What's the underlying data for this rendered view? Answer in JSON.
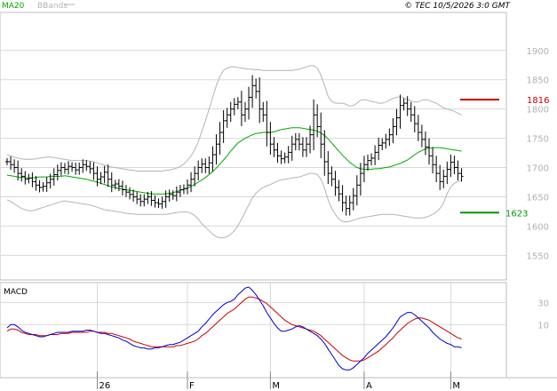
{
  "header": {
    "ma_label": "MA20",
    "bbands_label": "BBands",
    "copyright": "© TEC 10/5/2026 3:0 GMT"
  },
  "colors": {
    "candle": "#000000",
    "ma": "#00aa00",
    "bbands": "#b4b4b4",
    "resistance": "#cc0000",
    "support": "#009900",
    "macd": "#0000cc",
    "signal": "#cc0000",
    "grid": "#d8d8d8",
    "border": "#bcbcbc"
  },
  "chart_data": [
    {
      "type": "candlestick",
      "title": "",
      "y_ticks": [
        1550,
        1600,
        1650,
        1700,
        1750,
        1800,
        1850,
        1900
      ],
      "ylim": [
        1508,
        1965
      ],
      "x_ticks": [
        {
          "label": "26",
          "index": 25
        },
        {
          "label": "F",
          "index": 50
        },
        {
          "label": "M",
          "index": 73
        },
        {
          "label": "A",
          "index": 99
        },
        {
          "label": "M",
          "index": 123
        }
      ],
      "resistance": {
        "value": 1816,
        "label": "1816"
      },
      "support": {
        "value": 1623,
        "label": "1623"
      },
      "series": {
        "close": [
          1710,
          1705,
          1700,
          1690,
          1685,
          1680,
          1682,
          1676,
          1670,
          1666,
          1668,
          1674,
          1680,
          1688,
          1695,
          1700,
          1697,
          1702,
          1700,
          1696,
          1700,
          1705,
          1702,
          1698,
          1690,
          1680,
          1684,
          1692,
          1680,
          1670,
          1672,
          1668,
          1662,
          1658,
          1654,
          1650,
          1646,
          1642,
          1646,
          1650,
          1644,
          1640,
          1638,
          1642,
          1650,
          1654,
          1652,
          1658,
          1662,
          1664,
          1670,
          1680,
          1690,
          1700,
          1706,
          1700,
          1708,
          1722,
          1740,
          1760,
          1780,
          1790,
          1800,
          1808,
          1812,
          1790,
          1800,
          1820,
          1840,
          1830,
          1800,
          1790,
          1760,
          1740,
          1730,
          1720,
          1715,
          1718,
          1726,
          1740,
          1748,
          1740,
          1730,
          1740,
          1756,
          1790,
          1770,
          1740,
          1710,
          1690,
          1680,
          1666,
          1655,
          1640,
          1630,
          1640,
          1652,
          1670,
          1690,
          1705,
          1712,
          1716,
          1726,
          1738,
          1742,
          1748,
          1756,
          1770,
          1785,
          1806,
          1810,
          1800,
          1790,
          1775,
          1760,
          1748,
          1735,
          1720,
          1705,
          1690,
          1676,
          1685,
          1697,
          1709,
          1700,
          1690,
          1685
        ],
        "ma20": [
          1687,
          1686,
          1685,
          1684,
          1683,
          1683,
          1682,
          1682,
          1683,
          1684,
          1684,
          1684,
          1685,
          1685,
          1685,
          1685,
          1686,
          1685,
          1684,
          1683,
          1682,
          1681,
          1680,
          1678,
          1677,
          1675,
          1673,
          1671,
          1669,
          1667,
          1666,
          1664,
          1663,
          1662,
          1661,
          1660,
          1659,
          1658,
          1657,
          1656,
          1655,
          1655,
          1655,
          1655,
          1655,
          1656,
          1657,
          1659,
          1661,
          1663,
          1665,
          1668,
          1671,
          1675,
          1679,
          1683,
          1688,
          1693,
          1699,
          1706,
          1713,
          1720,
          1728,
          1735,
          1742,
          1746,
          1750,
          1753,
          1756,
          1758,
          1759,
          1760,
          1760,
          1760,
          1761,
          1763,
          1765,
          1766,
          1767,
          1768,
          1768,
          1768,
          1767,
          1766,
          1765,
          1764,
          1762,
          1759,
          1755,
          1749,
          1742,
          1735,
          1728,
          1721,
          1715,
          1709,
          1704,
          1700,
          1698,
          1697,
          1697,
          1697,
          1698,
          1698,
          1699,
          1700,
          1701,
          1703,
          1705,
          1707,
          1710,
          1713,
          1717,
          1722,
          1726,
          1729,
          1732,
          1733,
          1734,
          1734,
          1734,
          1733,
          1732,
          1731,
          1730,
          1729,
          1728
        ],
        "bb_upper": [
          1722,
          1720,
          1718,
          1716,
          1715,
          1714,
          1714,
          1714,
          1715,
          1716,
          1717,
          1718,
          1718,
          1717,
          1716,
          1715,
          1714,
          1713,
          1712,
          1712,
          1712,
          1712,
          1712,
          1711,
          1710,
          1708,
          1706,
          1704,
          1702,
          1701,
          1700,
          1699,
          1698,
          1697,
          1696,
          1695,
          1694,
          1694,
          1694,
          1694,
          1694,
          1694,
          1694,
          1694,
          1695,
          1696,
          1697,
          1699,
          1702,
          1706,
          1712,
          1720,
          1730,
          1744,
          1762,
          1780,
          1800,
          1820,
          1840,
          1856,
          1866,
          1870,
          1872,
          1872,
          1871,
          1870,
          1869,
          1868,
          1868,
          1867,
          1867,
          1866,
          1866,
          1866,
          1866,
          1866,
          1866,
          1866,
          1866,
          1866,
          1867,
          1868,
          1870,
          1872,
          1874,
          1874,
          1870,
          1858,
          1840,
          1822,
          1813,
          1810,
          1810,
          1810,
          1808,
          1805,
          1806,
          1810,
          1815,
          1816,
          1815,
          1813,
          1812,
          1810,
          1810,
          1812,
          1815,
          1818,
          1820,
          1821,
          1819,
          1816,
          1814,
          1812,
          1812,
          1815,
          1816,
          1815,
          1812,
          1810,
          1806,
          1802,
          1800,
          1798,
          1796,
          1793,
          1790
        ],
        "bb_lower": [
          1645,
          1642,
          1638,
          1634,
          1630,
          1628,
          1626,
          1626,
          1628,
          1630,
          1632,
          1634,
          1636,
          1638,
          1640,
          1642,
          1643,
          1642,
          1641,
          1640,
          1639,
          1638,
          1637,
          1636,
          1634,
          1632,
          1630,
          1628,
          1627,
          1626,
          1625,
          1624,
          1623,
          1622,
          1621,
          1621,
          1620,
          1620,
          1620,
          1620,
          1620,
          1620,
          1620,
          1620,
          1620,
          1621,
          1622,
          1623,
          1624,
          1624,
          1624,
          1622,
          1618,
          1612,
          1604,
          1598,
          1592,
          1586,
          1582,
          1580,
          1580,
          1582,
          1586,
          1592,
          1600,
          1612,
          1624,
          1636,
          1648,
          1656,
          1662,
          1666,
          1669,
          1671,
          1674,
          1677,
          1679,
          1680,
          1681,
          1682,
          1683,
          1684,
          1686,
          1688,
          1690,
          1690,
          1688,
          1680,
          1665,
          1645,
          1630,
          1620,
          1612,
          1608,
          1607,
          1608,
          1610,
          1612,
          1614,
          1615,
          1616,
          1617,
          1618,
          1619,
          1620,
          1620,
          1620,
          1620,
          1619,
          1618,
          1617,
          1616,
          1615,
          1614,
          1614,
          1614,
          1615,
          1617,
          1620,
          1624,
          1630,
          1640,
          1655,
          1667,
          1673,
          1676,
          1678
        ]
      }
    },
    {
      "type": "line",
      "title": "MACD",
      "y_ticks": [
        10,
        30
      ],
      "ylim": [
        -38,
        48
      ],
      "series": [
        {
          "name": "",
          "values": [
            7,
            10,
            10,
            8,
            5,
            3,
            2,
            1,
            0,
            -1,
            -1,
            0,
            1,
            2,
            3,
            3,
            3,
            3,
            4,
            4,
            4,
            4,
            5,
            5,
            4,
            3,
            2,
            2,
            1,
            0,
            -1,
            -2,
            -4,
            -5,
            -7,
            -9,
            -10,
            -11,
            -11,
            -12,
            -12,
            -11,
            -11,
            -10,
            -9,
            -8,
            -8,
            -7,
            -6,
            -4,
            -2,
            0,
            2,
            4,
            8,
            11,
            15,
            19,
            22,
            25,
            28,
            30,
            31,
            33,
            37,
            40,
            43,
            44,
            41,
            37,
            32,
            27,
            21,
            16,
            11,
            7,
            4,
            4,
            5,
            6,
            8,
            9,
            8,
            6,
            4,
            2,
            0,
            -3,
            -7,
            -12,
            -17,
            -22,
            -27,
            -30,
            -31,
            -31,
            -29,
            -26,
            -23,
            -20,
            -16,
            -13,
            -10,
            -7,
            -4,
            -1,
            3,
            7,
            12,
            17,
            19,
            21,
            21,
            19,
            16,
            13,
            10,
            7,
            3,
            0,
            -3,
            -5,
            -7,
            -8,
            -10,
            -10,
            -11
          ]
        },
        {
          "name": "",
          "values": [
            4,
            6,
            6,
            5,
            3,
            2,
            1,
            1,
            1,
            0,
            0,
            0,
            1,
            1,
            1,
            2,
            2,
            2,
            3,
            3,
            3,
            3,
            3,
            4,
            4,
            3,
            3,
            3,
            2,
            2,
            1,
            0,
            -1,
            -2,
            -3,
            -5,
            -6,
            -7,
            -8,
            -9,
            -10,
            -10,
            -10,
            -10,
            -10,
            -10,
            -10,
            -9,
            -9,
            -8,
            -7,
            -6,
            -5,
            -3,
            0,
            2,
            5,
            8,
            11,
            14,
            17,
            20,
            22,
            24,
            27,
            30,
            33,
            35,
            35,
            34,
            33,
            31,
            29,
            26,
            23,
            20,
            17,
            14,
            12,
            10,
            9,
            8,
            7,
            6,
            5,
            4,
            2,
            0,
            -3,
            -6,
            -9,
            -12,
            -15,
            -18,
            -20,
            -22,
            -23,
            -23,
            -23,
            -22,
            -20,
            -18,
            -16,
            -14,
            -11,
            -8,
            -5,
            -2,
            2,
            5,
            8,
            11,
            13,
            15,
            16,
            16,
            15,
            14,
            12,
            10,
            8,
            6,
            4,
            2,
            0,
            -2,
            -3
          ]
        }
      ]
    }
  ]
}
